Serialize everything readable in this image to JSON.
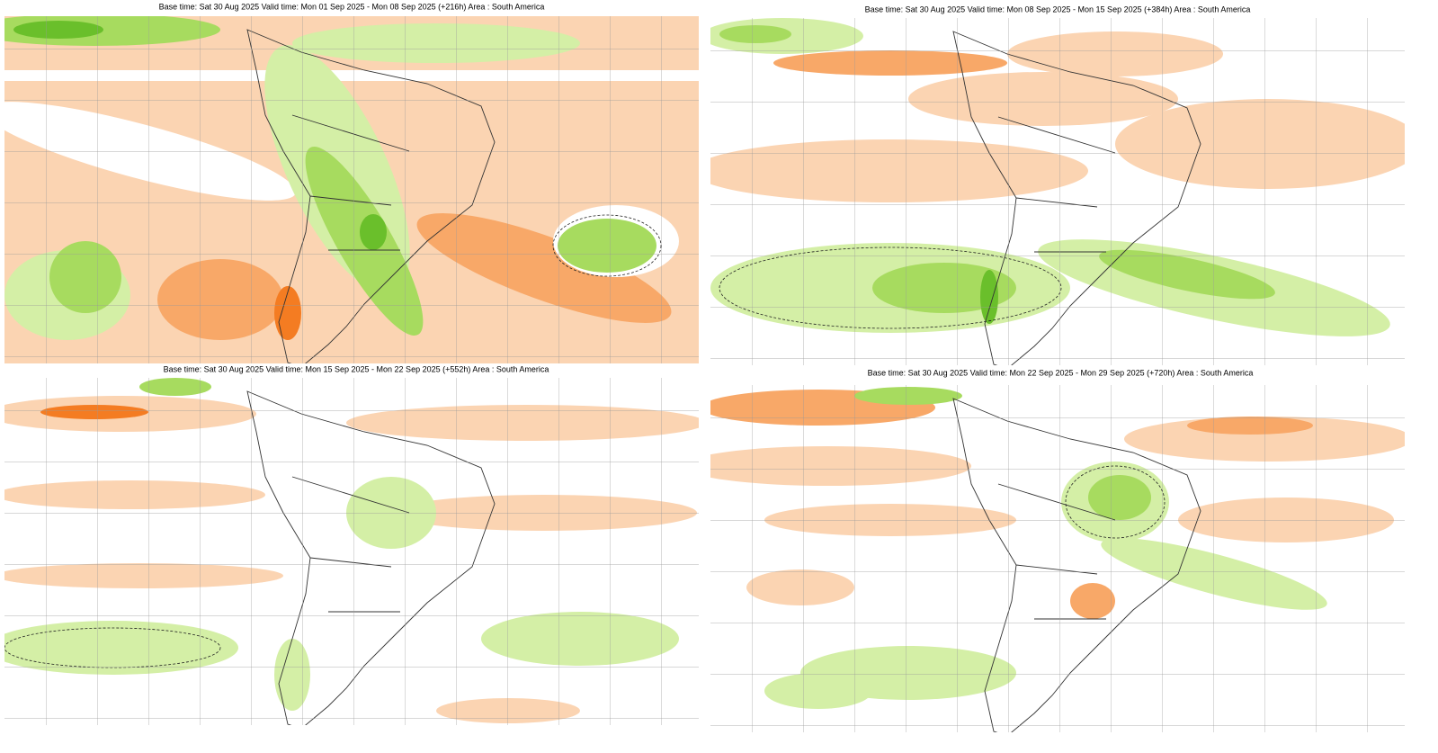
{
  "panels": [
    {
      "title": "Base time: Sat 30 Aug 2025 Valid time: Mon 01 Sep 2025 - Mon 08 Sep 2025 (+216h) Area : South America"
    },
    {
      "title": "Base time: Sat 30 Aug 2025 Valid time: Mon 08 Sep 2025 - Mon 15 Sep 2025 (+384h) Area : South America"
    },
    {
      "title": "Base time: Sat 30 Aug 2025 Valid time: Mon 15 Sep 2025 - Mon 22 Sep 2025 (+552h) Area : South America"
    },
    {
      "title": "Base time: Sat 30 Aug 2025 Valid time: Mon 22 Sep 2025 - Mon 29 Sep 2025 (+720h) Area : South America"
    }
  ]
}
